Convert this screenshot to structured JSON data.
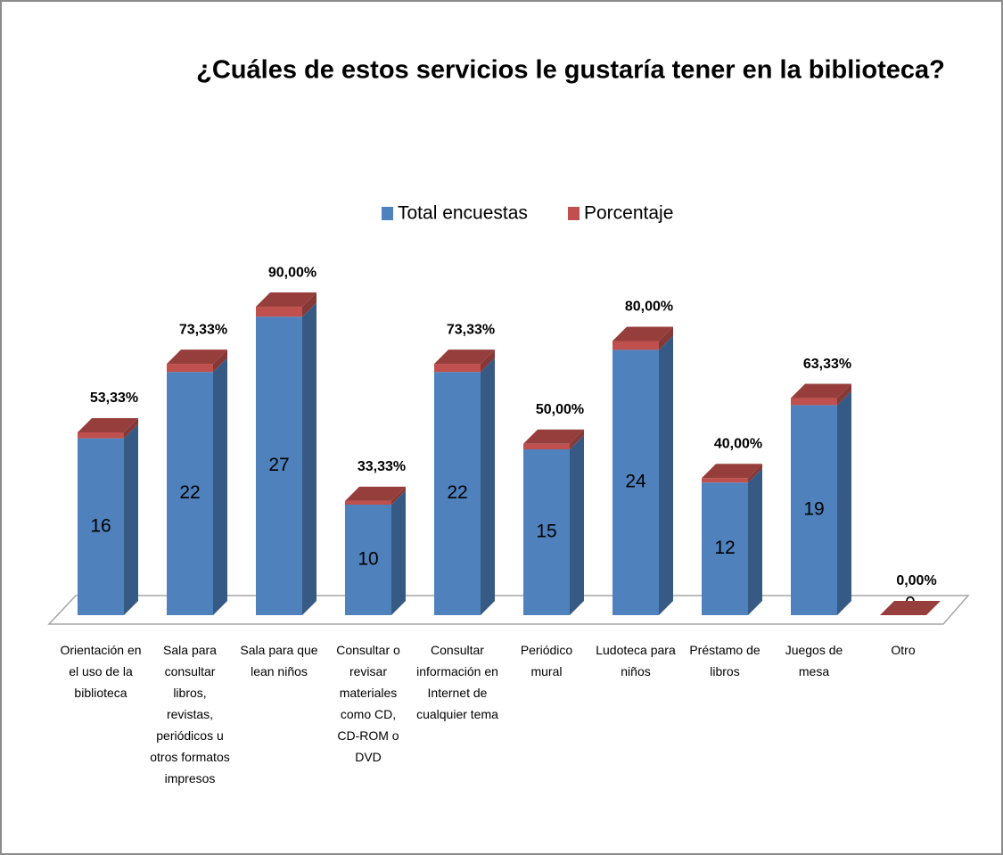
{
  "chart_data": {
    "type": "bar3d_stacked",
    "title": "¿Cuáles de estos servicios le gustaría tener en la biblioteca?",
    "categories": [
      "Orientación en el uso de la biblioteca",
      "Sala para consultar libros, revistas, periódicos u otros formatos impresos",
      "Sala para que lean niños",
      "Consultar o revisar materiales como CD, CD-ROM o DVD",
      "Consultar información en Internet de cualquier tema",
      "Periódico mural",
      "Ludoteca para niños",
      "Préstamo de libros",
      "Juegos de mesa",
      "Otro"
    ],
    "series": [
      {
        "name": "Total encuestas",
        "color": "#4f81bd",
        "values": [
          16,
          22,
          27,
          10,
          22,
          15,
          24,
          12,
          19,
          0
        ]
      },
      {
        "name": "Porcentaje",
        "color": "#c0504d",
        "axis": "y2",
        "values": [
          53.33,
          73.33,
          90,
          33.33,
          73.33,
          50,
          80,
          40,
          63.33,
          0
        ],
        "value_labels": [
          "53,33%",
          "73,33%",
          "90,00%",
          "33,33%",
          "73,33%",
          "50,00%",
          "80,00%",
          "40,00%",
          "63,33%",
          "0,00%"
        ]
      }
    ],
    "ylim": [
      0,
      30
    ],
    "y2lim": [
      0,
      3000
    ],
    "legend": "top"
  }
}
